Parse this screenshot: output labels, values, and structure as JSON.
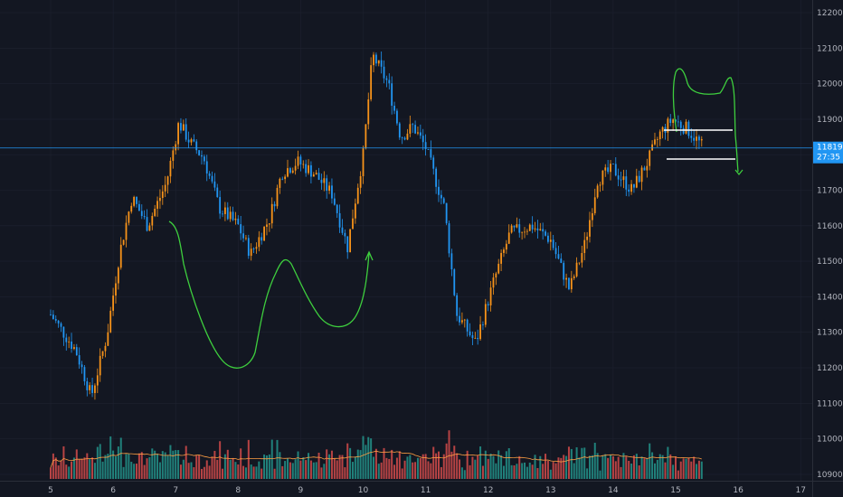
{
  "chart_data": {
    "type": "candlestick",
    "y_axis": {
      "ticks": [
        "12200.0",
        "12100.0",
        "12000.0",
        "11900.0",
        "11800.0",
        "11700.0",
        "11600.0",
        "11500.0",
        "11400.0",
        "11300.0",
        "11200.0",
        "11100.0",
        "11000.0",
        "10900.0"
      ],
      "range": [
        10870,
        12240
      ]
    },
    "x_axis": {
      "ticks": [
        "5",
        "6",
        "7",
        "8",
        "9",
        "10",
        "11",
        "12",
        "13",
        "14",
        "15",
        "16",
        "17"
      ]
    },
    "current_price": {
      "value": 11819.0,
      "label": "11819.0",
      "countdown": "27:35"
    },
    "colors": {
      "background": "#131722",
      "up_candle": "#f7931a",
      "down_candle": "#2196f3",
      "volume_up": "#26a69a",
      "volume_down": "#ef5350",
      "volume_ma": "#ff9f43",
      "price_line": "#2196f3",
      "drawing_green": "#3ecf3e",
      "drawing_white": "#ffffff",
      "axis_text": "#b2b5be",
      "grid": "#1e2230"
    },
    "keypoints": [
      {
        "t": 0,
        "p": 11350
      },
      {
        "t": 0.4,
        "p": 11250
      },
      {
        "t": 0.65,
        "p": 11120
      },
      {
        "t": 0.9,
        "p": 11290
      },
      {
        "t": 1.1,
        "p": 11520
      },
      {
        "t": 1.3,
        "p": 11680
      },
      {
        "t": 1.55,
        "p": 11600
      },
      {
        "t": 1.85,
        "p": 11720
      },
      {
        "t": 2.05,
        "p": 11890
      },
      {
        "t": 2.25,
        "p": 11830
      },
      {
        "t": 2.45,
        "p": 11790
      },
      {
        "t": 2.7,
        "p": 11650
      },
      {
        "t": 3.0,
        "p": 11600
      },
      {
        "t": 3.2,
        "p": 11520
      },
      {
        "t": 3.5,
        "p": 11620
      },
      {
        "t": 3.7,
        "p": 11750
      },
      {
        "t": 3.95,
        "p": 11780
      },
      {
        "t": 4.2,
        "p": 11750
      },
      {
        "t": 4.5,
        "p": 11690
      },
      {
        "t": 4.75,
        "p": 11540
      },
      {
        "t": 4.9,
        "p": 11700
      },
      {
        "t": 5.0,
        "p": 11800
      },
      {
        "t": 5.15,
        "p": 12080
      },
      {
        "t": 5.4,
        "p": 12000
      },
      {
        "t": 5.6,
        "p": 11850
      },
      {
        "t": 5.8,
        "p": 11880
      },
      {
        "t": 6.0,
        "p": 11820
      },
      {
        "t": 6.3,
        "p": 11650
      },
      {
        "t": 6.5,
        "p": 11350
      },
      {
        "t": 6.8,
        "p": 11270
      },
      {
        "t": 7.1,
        "p": 11450
      },
      {
        "t": 7.35,
        "p": 11580
      },
      {
        "t": 7.7,
        "p": 11600
      },
      {
        "t": 8.0,
        "p": 11560
      },
      {
        "t": 8.3,
        "p": 11420
      },
      {
        "t": 8.55,
        "p": 11550
      },
      {
        "t": 8.75,
        "p": 11730
      },
      {
        "t": 9.0,
        "p": 11760
      },
      {
        "t": 9.3,
        "p": 11700
      },
      {
        "t": 9.55,
        "p": 11780
      },
      {
        "t": 9.75,
        "p": 11860
      },
      {
        "t": 9.95,
        "p": 11900
      },
      {
        "t": 10.2,
        "p": 11870
      },
      {
        "t": 10.45,
        "p": 11819
      }
    ]
  }
}
